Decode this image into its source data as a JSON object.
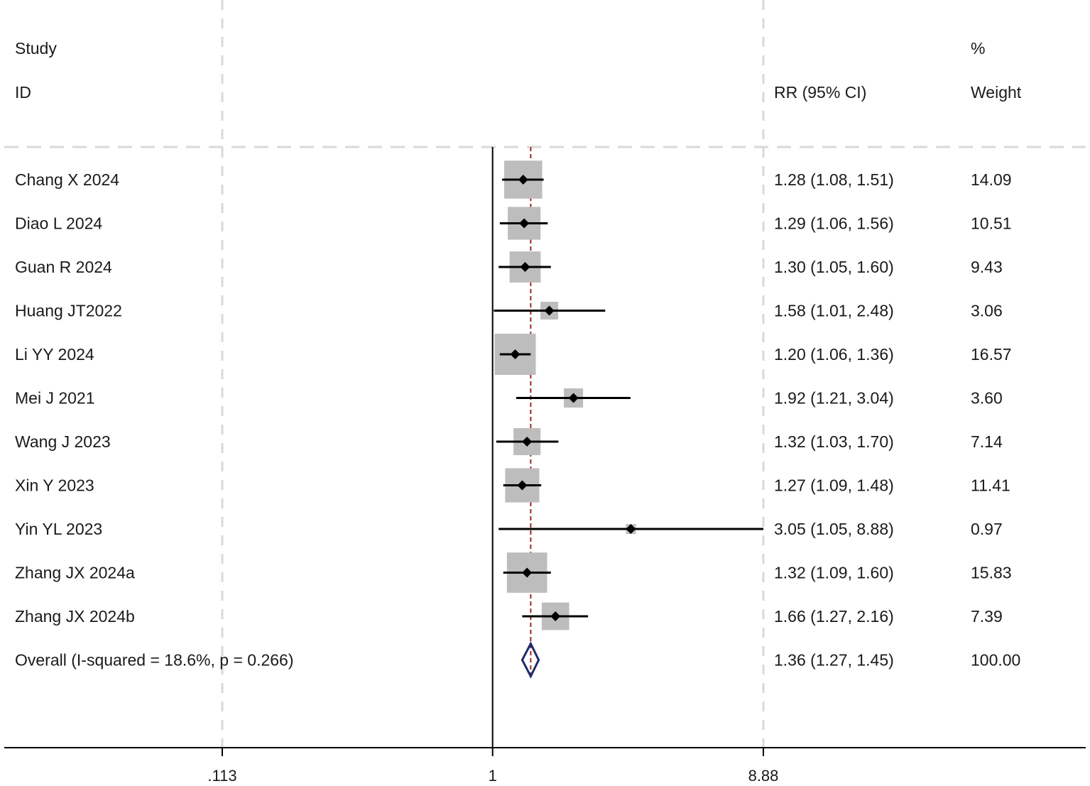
{
  "headers": {
    "study": "Study",
    "id": "ID",
    "rr": "RR (95% CI)",
    "percent": "%",
    "weight": "Weight"
  },
  "colors": {
    "box": "#bdbdbd",
    "line": "#000000",
    "reference": "#8b2d2d",
    "diamond": "#1f2a6e",
    "grid": "#d9d9d9"
  },
  "chart_data": {
    "type": "forest",
    "scale": "log",
    "xlim": [
      0.113,
      8.88
    ],
    "ticks": [
      {
        "value": 0.113,
        "label": ".113"
      },
      {
        "value": 1,
        "label": "1"
      },
      {
        "value": 8.88,
        "label": "8.88"
      }
    ],
    "null_value": 1,
    "pooled_reference": 1.36,
    "studies": [
      {
        "id": "Chang X 2024",
        "rr": 1.28,
        "lo": 1.08,
        "hi": 1.51,
        "ci_text": "1.28 (1.08, 1.51)",
        "weight": 14.09,
        "weight_text": "14.09"
      },
      {
        "id": "Diao L 2024",
        "rr": 1.29,
        "lo": 1.06,
        "hi": 1.56,
        "ci_text": "1.29 (1.06, 1.56)",
        "weight": 10.51,
        "weight_text": "10.51"
      },
      {
        "id": "Guan R 2024",
        "rr": 1.3,
        "lo": 1.05,
        "hi": 1.6,
        "ci_text": "1.30 (1.05, 1.60)",
        "weight": 9.43,
        "weight_text": "9.43"
      },
      {
        "id": "Huang JT2022",
        "rr": 1.58,
        "lo": 1.01,
        "hi": 2.48,
        "ci_text": "1.58 (1.01, 2.48)",
        "weight": 3.06,
        "weight_text": "3.06"
      },
      {
        "id": "Li YY 2024",
        "rr": 1.2,
        "lo": 1.06,
        "hi": 1.36,
        "ci_text": "1.20 (1.06, 1.36)",
        "weight": 16.57,
        "weight_text": "16.57"
      },
      {
        "id": "Mei J 2021",
        "rr": 1.92,
        "lo": 1.21,
        "hi": 3.04,
        "ci_text": "1.92 (1.21, 3.04)",
        "weight": 3.6,
        "weight_text": "3.60"
      },
      {
        "id": "Wang J 2023",
        "rr": 1.32,
        "lo": 1.03,
        "hi": 1.7,
        "ci_text": "1.32 (1.03, 1.70)",
        "weight": 7.14,
        "weight_text": "7.14"
      },
      {
        "id": "Xin Y 2023",
        "rr": 1.27,
        "lo": 1.09,
        "hi": 1.48,
        "ci_text": "1.27 (1.09, 1.48)",
        "weight": 11.41,
        "weight_text": "11.41"
      },
      {
        "id": "Yin YL 2023",
        "rr": 3.05,
        "lo": 1.05,
        "hi": 8.88,
        "ci_text": "3.05 (1.05, 8.88)",
        "weight": 0.97,
        "weight_text": "0.97"
      },
      {
        "id": "Zhang JX 2024a",
        "rr": 1.32,
        "lo": 1.09,
        "hi": 1.6,
        "ci_text": "1.32 (1.09, 1.60)",
        "weight": 15.83,
        "weight_text": "15.83"
      },
      {
        "id": "Zhang JX 2024b",
        "rr": 1.66,
        "lo": 1.27,
        "hi": 2.16,
        "ci_text": "1.66 (1.27, 2.16)",
        "weight": 7.39,
        "weight_text": "7.39"
      }
    ],
    "overall": {
      "label": "Overall  (I-squared = 18.6%, p = 0.266)",
      "rr": 1.36,
      "lo": 1.27,
      "hi": 1.45,
      "ci_text": "1.36 (1.27, 1.45)",
      "weight_text": "100.00"
    }
  }
}
